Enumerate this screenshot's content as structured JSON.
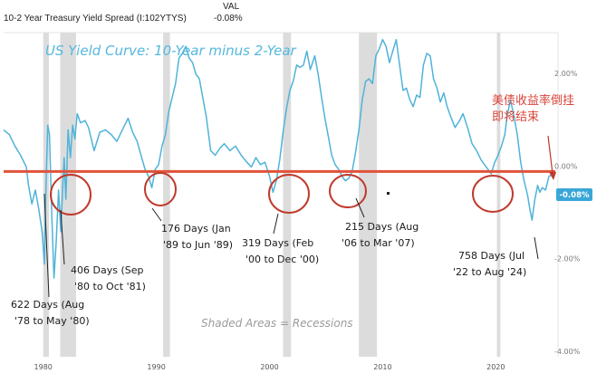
{
  "header": {
    "series_label": "10-2 Year Treasury Yield Spread (I:102YTYS)",
    "val_label": "VAL",
    "val_value": "-0.08%"
  },
  "colors": {
    "line": "#4fb3d9",
    "zero_line": "#e0533a",
    "recession": "#dcdcdc",
    "highlight": "#c0392b",
    "badge": "#3aa6d8"
  },
  "chart_data": {
    "type": "line",
    "title": "US Yield Curve: 10-Year minus 2-Year",
    "xlabel": "",
    "ylabel": "",
    "xlim": [
      1976.5,
      2025.5
    ],
    "ylim": [
      -4.0,
      3.0
    ],
    "x_ticks": [
      "1980",
      "1990",
      "2000",
      "2010",
      "2020"
    ],
    "y_ticks": [
      "2.00%",
      "0.00%",
      "-2.00%",
      "-4.00%"
    ],
    "current_value_label": "-0.08%",
    "grid": false,
    "recessions": [
      [
        1980.0,
        1980.5
      ],
      [
        1981.5,
        1982.9
      ],
      [
        1990.6,
        1991.2
      ],
      [
        2001.2,
        2001.9
      ],
      [
        2007.9,
        2009.5
      ],
      [
        2020.1,
        2020.4
      ]
    ],
    "series": [
      {
        "values": [
          [
            1976.5,
            0.9
          ],
          [
            1977.0,
            0.8
          ],
          [
            1977.5,
            0.55
          ],
          [
            1978.0,
            0.35
          ],
          [
            1978.5,
            0.1
          ],
          [
            1978.7,
            -0.3
          ],
          [
            1979.0,
            -0.7
          ],
          [
            1979.3,
            -0.4
          ],
          [
            1979.6,
            -0.8
          ],
          [
            1979.9,
            -1.3
          ],
          [
            1980.1,
            -2.0
          ],
          [
            1980.25,
            -0.3
          ],
          [
            1980.4,
            1.0
          ],
          [
            1980.55,
            0.8
          ],
          [
            1980.75,
            -0.9
          ],
          [
            1980.95,
            -2.3
          ],
          [
            1981.15,
            -1.5
          ],
          [
            1981.35,
            -0.4
          ],
          [
            1981.55,
            -1.3
          ],
          [
            1981.7,
            -0.5
          ],
          [
            1981.85,
            0.3
          ],
          [
            1982.0,
            -0.6
          ],
          [
            1982.2,
            0.9
          ],
          [
            1982.4,
            0.3
          ],
          [
            1982.6,
            1.0
          ],
          [
            1982.8,
            0.7
          ],
          [
            1983.0,
            1.25
          ],
          [
            1983.3,
            1.05
          ],
          [
            1983.7,
            1.1
          ],
          [
            1984.0,
            0.95
          ],
          [
            1984.5,
            0.45
          ],
          [
            1985.0,
            0.85
          ],
          [
            1985.5,
            0.9
          ],
          [
            1986.0,
            0.8
          ],
          [
            1986.5,
            0.65
          ],
          [
            1987.0,
            0.9
          ],
          [
            1987.5,
            1.15
          ],
          [
            1987.9,
            0.85
          ],
          [
            1988.3,
            0.65
          ],
          [
            1988.7,
            0.3
          ],
          [
            1989.0,
            0.05
          ],
          [
            1989.3,
            -0.1
          ],
          [
            1989.6,
            -0.35
          ],
          [
            1989.9,
            0.05
          ],
          [
            1990.2,
            0.15
          ],
          [
            1990.5,
            0.55
          ],
          [
            1990.8,
            0.8
          ],
          [
            1991.1,
            1.3
          ],
          [
            1991.4,
            1.6
          ],
          [
            1991.7,
            1.9
          ],
          [
            1992.0,
            2.45
          ],
          [
            1992.3,
            2.55
          ],
          [
            1992.6,
            2.7
          ],
          [
            1992.9,
            2.45
          ],
          [
            1993.2,
            2.35
          ],
          [
            1993.5,
            2.1
          ],
          [
            1993.8,
            2.0
          ],
          [
            1994.1,
            1.6
          ],
          [
            1994.4,
            1.2
          ],
          [
            1994.8,
            0.45
          ],
          [
            1995.2,
            0.35
          ],
          [
            1995.6,
            0.5
          ],
          [
            1996.0,
            0.6
          ],
          [
            1996.5,
            0.45
          ],
          [
            1997.0,
            0.55
          ],
          [
            1997.5,
            0.35
          ],
          [
            1998.0,
            0.2
          ],
          [
            1998.4,
            0.1
          ],
          [
            1998.8,
            0.3
          ],
          [
            1999.2,
            0.15
          ],
          [
            1999.6,
            0.2
          ],
          [
            2000.0,
            -0.1
          ],
          [
            2000.3,
            -0.45
          ],
          [
            2000.6,
            -0.2
          ],
          [
            2000.9,
            0.25
          ],
          [
            2001.2,
            0.85
          ],
          [
            2001.5,
            1.35
          ],
          [
            2001.8,
            1.75
          ],
          [
            2002.1,
            1.95
          ],
          [
            2002.4,
            2.3
          ],
          [
            2002.7,
            2.25
          ],
          [
            2003.0,
            2.3
          ],
          [
            2003.3,
            2.6
          ],
          [
            2003.6,
            2.2
          ],
          [
            2004.0,
            2.5
          ],
          [
            2004.3,
            2.1
          ],
          [
            2004.6,
            1.6
          ],
          [
            2004.9,
            1.15
          ],
          [
            2005.2,
            0.75
          ],
          [
            2005.5,
            0.35
          ],
          [
            2005.8,
            0.15
          ],
          [
            2006.1,
            0.05
          ],
          [
            2006.4,
            -0.1
          ],
          [
            2006.7,
            -0.2
          ],
          [
            2007.0,
            -0.15
          ],
          [
            2007.3,
            0.0
          ],
          [
            2007.6,
            0.4
          ],
          [
            2007.9,
            0.9
          ],
          [
            2008.2,
            1.55
          ],
          [
            2008.5,
            1.95
          ],
          [
            2008.8,
            2.0
          ],
          [
            2009.1,
            1.9
          ],
          [
            2009.4,
            2.5
          ],
          [
            2009.7,
            2.65
          ],
          [
            2010.0,
            2.85
          ],
          [
            2010.3,
            2.7
          ],
          [
            2010.6,
            2.35
          ],
          [
            2010.9,
            2.6
          ],
          [
            2011.2,
            2.85
          ],
          [
            2011.5,
            2.3
          ],
          [
            2011.8,
            1.75
          ],
          [
            2012.1,
            1.8
          ],
          [
            2012.4,
            1.55
          ],
          [
            2012.7,
            1.4
          ],
          [
            2013.0,
            1.65
          ],
          [
            2013.3,
            1.6
          ],
          [
            2013.6,
            2.3
          ],
          [
            2013.9,
            2.55
          ],
          [
            2014.2,
            2.5
          ],
          [
            2014.5,
            2.0
          ],
          [
            2014.8,
            1.8
          ],
          [
            2015.1,
            1.5
          ],
          [
            2015.4,
            1.7
          ],
          [
            2015.7,
            1.4
          ],
          [
            2016.0,
            1.2
          ],
          [
            2016.4,
            0.95
          ],
          [
            2016.8,
            1.1
          ],
          [
            2017.1,
            1.25
          ],
          [
            2017.5,
            0.95
          ],
          [
            2017.9,
            0.6
          ],
          [
            2018.3,
            0.45
          ],
          [
            2018.7,
            0.25
          ],
          [
            2019.0,
            0.15
          ],
          [
            2019.3,
            0.05
          ],
          [
            2019.6,
            -0.05
          ],
          [
            2019.9,
            0.2
          ],
          [
            2020.2,
            0.35
          ],
          [
            2020.5,
            0.55
          ],
          [
            2020.8,
            0.8
          ],
          [
            2021.0,
            1.2
          ],
          [
            2021.3,
            1.55
          ],
          [
            2021.6,
            1.2
          ],
          [
            2021.9,
            0.8
          ],
          [
            2022.2,
            0.2
          ],
          [
            2022.5,
            -0.2
          ],
          [
            2022.8,
            -0.5
          ],
          [
            2023.0,
            -0.8
          ],
          [
            2023.2,
            -1.05
          ],
          [
            2023.45,
            -0.6
          ],
          [
            2023.7,
            -0.3
          ],
          [
            2023.9,
            -0.45
          ],
          [
            2024.1,
            -0.35
          ],
          [
            2024.4,
            -0.4
          ],
          [
            2024.7,
            -0.1
          ],
          [
            2025.0,
            -0.08
          ]
        ]
      }
    ]
  },
  "annotations": {
    "shaded_note": "Shaded Areas = Recessions",
    "chinese_note_line1": "美债收益率倒挂",
    "chinese_note_line2": "即将结束",
    "a1_line1": "622 Days (Aug",
    "a1_line2": "'78 to May '80)",
    "a2_line1": "406 Days (Sep",
    "a2_line2": "'80 to Oct '81)",
    "a3_line1": "176 Days (Jan",
    "a3_line2": "'89 to Jun '89)",
    "a4_line1": "319 Days (Feb",
    "a4_line2": "'00 to Dec '00)",
    "a5_line1": "215 Days (Aug",
    "a5_line2": "'06 to Mar '07)",
    "a6_line1": "758 Days (Jul",
    "a6_line2": "'22 to Aug '24)"
  }
}
